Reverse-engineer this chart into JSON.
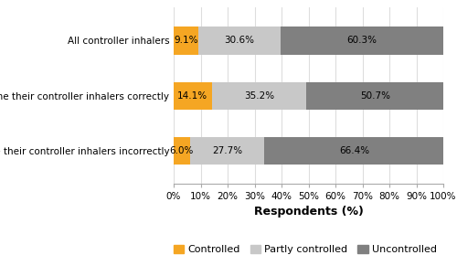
{
  "categories": [
    "All controller inhalers",
    "Name their controller inhalers correctly",
    "Name their controller inhalers incorrectly"
  ],
  "controlled": [
    9.1,
    14.1,
    6.0
  ],
  "partly_controlled": [
    30.6,
    35.2,
    27.7
  ],
  "uncontrolled": [
    60.3,
    50.7,
    66.4
  ],
  "colors": {
    "controlled": "#F5A623",
    "partly_controlled": "#C8C8C8",
    "uncontrolled": "#808080"
  },
  "legend_labels": [
    "Controlled",
    "Partly controlled",
    "Uncontrolled"
  ],
  "xlabel": "Respondents (%)",
  "xlim": [
    0,
    100
  ],
  "xticks": [
    0,
    10,
    20,
    30,
    40,
    50,
    60,
    70,
    80,
    90,
    100
  ],
  "xtick_labels": [
    "0%",
    "10%",
    "20%",
    "30%",
    "40%",
    "50%",
    "60%",
    "70%",
    "80%",
    "90%",
    "100%"
  ],
  "bar_height": 0.5,
  "fontsize_labels": 7.5,
  "fontsize_xlabel": 9,
  "fontsize_legend": 8,
  "fontsize_ticks": 7.5,
  "fontsize_bar_text": 7.5,
  "grid_color": "#DDDDDD",
  "background_color": "#FFFFFF"
}
